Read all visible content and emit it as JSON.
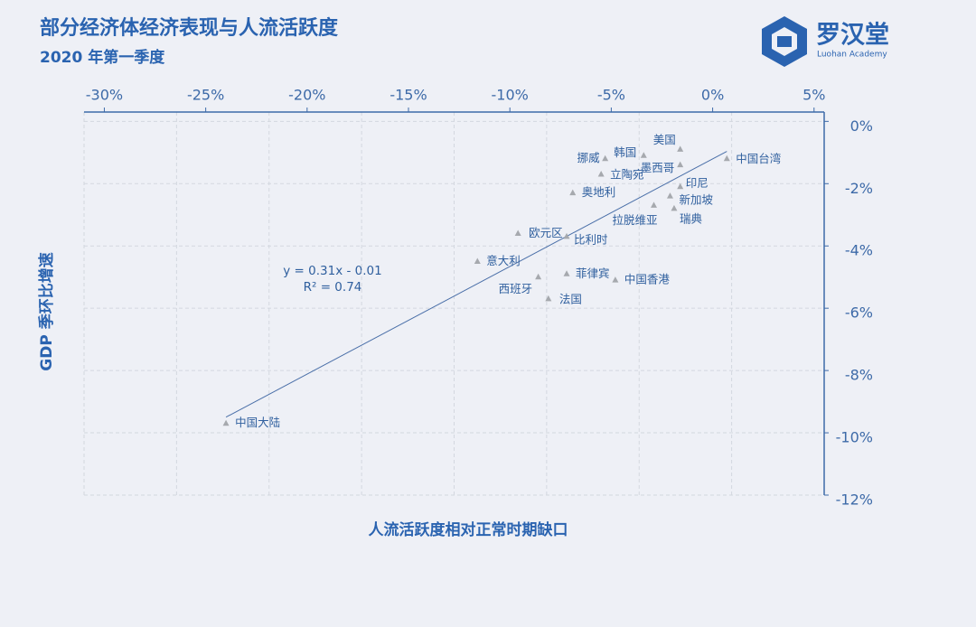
{
  "chart_data": {
    "type": "scatter",
    "title": "部分经济体经济表现与人流活跃度",
    "subtitle": "2020 年第一季度",
    "logo": {
      "name": "罗汉堂",
      "subname": "Luohan Academy"
    },
    "x_label": "人流活跃度相对正常时期缺口",
    "y_label": "GDP 季环比增速",
    "trend_equation": "y = 0.31x - 0.01",
    "trend_r2": "R² = 0.74",
    "color": "#a6a9ae",
    "trend_color": "#4a6fa8",
    "grid": true,
    "xlim": [
      -31,
      5.5
    ],
    "ylim": [
      -12,
      0.3
    ],
    "xticks": [
      {
        "value": -30,
        "label": "-30%"
      },
      {
        "value": -25,
        "label": "-25%"
      },
      {
        "value": -20,
        "label": "-20%"
      },
      {
        "value": -15,
        "label": "-15%"
      },
      {
        "value": -10,
        "label": "-10%"
      },
      {
        "value": -5,
        "label": "-5%"
      },
      {
        "value": 0,
        "label": "0%"
      },
      {
        "value": 5,
        "label": "5%"
      }
    ],
    "yticks": [
      {
        "value": 0,
        "label": "0%"
      },
      {
        "value": -2,
        "label": "-2%"
      },
      {
        "value": -4,
        "label": "-4%"
      },
      {
        "value": -6,
        "label": "-6%"
      },
      {
        "value": -8,
        "label": "-8%"
      },
      {
        "value": -10,
        "label": "-10%"
      },
      {
        "value": -12,
        "label": "-12%"
      }
    ],
    "labels": [
      "美国",
      "韩国",
      "挪威",
      "墨西哥",
      "中国台湾",
      "立陶宛",
      "印尼",
      "奥地利",
      "新加坡",
      "拉脱维亚",
      "瑞典",
      "欧元区",
      "比利时",
      "意大利",
      "菲律宾",
      "西班牙",
      "中国香港",
      "法国",
      "中国大陆"
    ],
    "x": [
      -1.6,
      -3.4,
      -5.3,
      -1.6,
      0.7,
      -5.5,
      -1.6,
      -6.9,
      -2.1,
      -2.9,
      -1.9,
      -9.6,
      -7.2,
      -11.6,
      -7.2,
      -8.6,
      -4.8,
      -8.1,
      -24.0
    ],
    "y": [
      -0.9,
      -1.1,
      -1.2,
      -1.4,
      -1.2,
      -1.7,
      -2.1,
      -2.3,
      -2.4,
      -2.7,
      -2.8,
      -3.6,
      -3.7,
      -4.5,
      -4.9,
      -5.0,
      -5.1,
      -5.7,
      -9.7
    ]
  }
}
